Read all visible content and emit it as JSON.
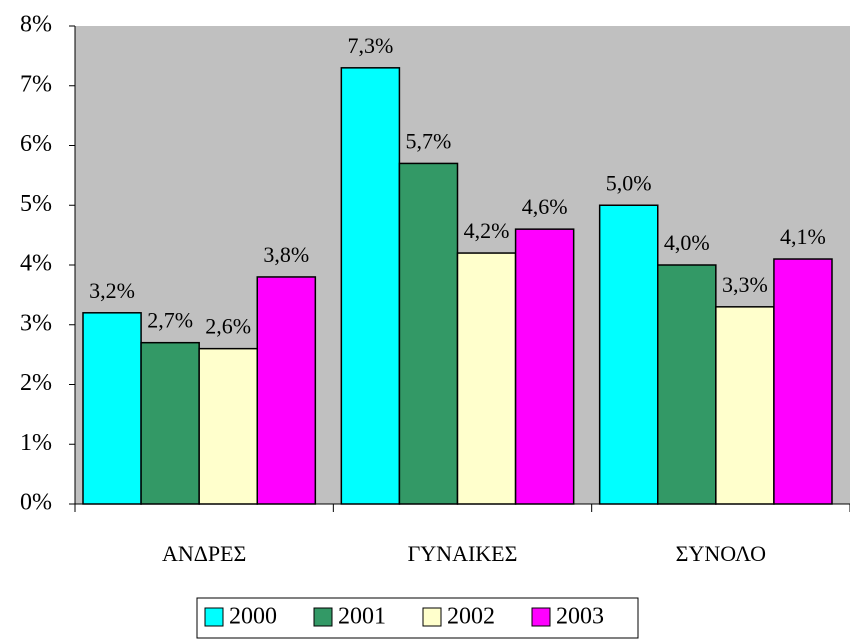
{
  "chart_data": {
    "type": "bar",
    "categories": [
      "ΑΝΔΡΕΣ",
      "ΓΥΝΑΙΚΕΣ",
      "ΣΥΝΟΛΟ"
    ],
    "series": [
      {
        "name": "2000",
        "color": "#00ffff",
        "values": [
          3.2,
          7.3,
          5.0
        ],
        "value_labels": [
          "3,2%",
          "7,3%",
          "5,0%"
        ]
      },
      {
        "name": "2001",
        "color": "#339966",
        "values": [
          2.7,
          5.7,
          4.0
        ],
        "value_labels": [
          "2,7%",
          "5,7%",
          "4,0%"
        ]
      },
      {
        "name": "2002",
        "color": "#ffffcc",
        "values": [
          2.6,
          4.2,
          3.3
        ],
        "value_labels": [
          "2,6%",
          "4,2%",
          "3,3%"
        ]
      },
      {
        "name": "2003",
        "color": "#ff00ff",
        "values": [
          3.8,
          4.6,
          4.1
        ],
        "value_labels": [
          "3,8%",
          "4,6%",
          "4,1%"
        ]
      }
    ],
    "ylim": [
      0,
      8
    ],
    "yticks": [
      {
        "value": 0,
        "label": "0%"
      },
      {
        "value": 1,
        "label": "1%"
      },
      {
        "value": 2,
        "label": "2%"
      },
      {
        "value": 3,
        "label": "3%"
      },
      {
        "value": 4,
        "label": "4%"
      },
      {
        "value": 5,
        "label": "5%"
      },
      {
        "value": 6,
        "label": "6%"
      },
      {
        "value": 7,
        "label": "7%"
      },
      {
        "value": 8,
        "label": "8%"
      }
    ],
    "plot_background": "#c0c0c0",
    "grid": false,
    "legend": "bottom"
  }
}
